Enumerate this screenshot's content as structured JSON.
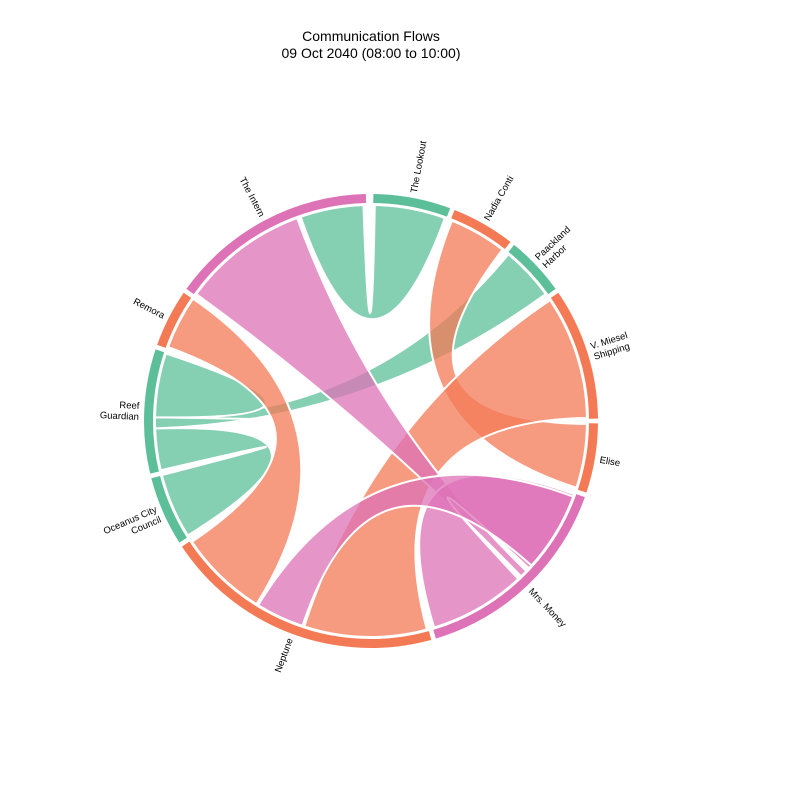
{
  "chart_data": {
    "type": "chord",
    "title": "Communication Flows",
    "subtitle": "09 Oct 2040 (08:00 to 10:00)",
    "nodes": [
      {
        "name": "The Lookout",
        "label_lines": [
          "The Lookout"
        ],
        "group": "green",
        "start_deg": 0.0,
        "end_deg": 21.0
      },
      {
        "name": "Nadia Conti",
        "label_lines": [
          "Nadia Conti"
        ],
        "group": "orange",
        "start_deg": 21.0,
        "end_deg": 38.5
      },
      {
        "name": "Paackland Harbor",
        "label_lines": [
          "Paackland",
          "Harbor"
        ],
        "group": "green",
        "start_deg": 38.5,
        "end_deg": 55.0
      },
      {
        "name": "V. Miesel Shipping",
        "label_lines": [
          "V. Miesel",
          "Shipping"
        ],
        "group": "orange",
        "start_deg": 55.0,
        "end_deg": 90.0
      },
      {
        "name": "Elise",
        "label_lines": [
          "Elise"
        ],
        "group": "orange",
        "start_deg": 90.0,
        "end_deg": 109.0
      },
      {
        "name": "Mrs. Money",
        "label_lines": [
          "Mrs. Money"
        ],
        "group": "pink",
        "start_deg": 109.0,
        "end_deg": 164.0
      },
      {
        "name": "Neptune",
        "label_lines": [
          "Neptune"
        ],
        "group": "orange",
        "start_deg": 164.0,
        "end_deg": 237.0
      },
      {
        "name": "Oceanus City Council",
        "label_lines": [
          "Oceanus City",
          "Council"
        ],
        "group": "green",
        "start_deg": 237.0,
        "end_deg": 256.0
      },
      {
        "name": "Reef Guardian",
        "label_lines": [
          "Reef",
          "Guardian"
        ],
        "group": "green",
        "start_deg": 256.0,
        "end_deg": 289.0
      },
      {
        "name": "Remora",
        "label_lines": [
          "Remora"
        ],
        "group": "orange",
        "start_deg": 289.0,
        "end_deg": 305.0
      },
      {
        "name": "The Intern",
        "label_lines": [
          "The Intern"
        ],
        "group": "pink",
        "start_deg": 305.0,
        "end_deg": 359.3
      }
    ],
    "flows": [
      {
        "source": "The Lookout",
        "target": "The Intern",
        "group": "green",
        "s": [
          1.0,
          20.0
        ],
        "t": [
          341.0,
          358.0
        ]
      },
      {
        "source": "Paackland Harbor",
        "target": "Reef Guardian",
        "group": "green",
        "s": [
          39.5,
          54.0
        ],
        "t": [
          268.0,
          271.0
        ]
      },
      {
        "source": "Reef Guardian",
        "target": "Oceanus City Council",
        "group": "green",
        "s": [
          256.8,
          268.0
        ],
        "t": [
          238.0,
          255.5
        ]
      },
      {
        "source": "Reef Guardian",
        "target": "Reef Guardian",
        "group": "green",
        "s": [
          271.0,
          288.2
        ],
        "t": [
          271.0,
          271.0
        ]
      },
      {
        "source": "Nadia Conti",
        "target": "Elise",
        "group": "orange",
        "s": [
          22.0,
          37.5
        ],
        "t": [
          90.8,
          108.0
        ]
      },
      {
        "source": "V. Miesel Shipping",
        "target": "Neptune",
        "group": "orange",
        "s": [
          56.0,
          89.2
        ],
        "t": [
          165.0,
          198.0
        ]
      },
      {
        "source": "Neptune",
        "target": "Remora",
        "group": "orange",
        "s": [
          212.0,
          236.0
        ],
        "t": [
          290.0,
          304.5
        ]
      },
      {
        "source": "The Intern",
        "target": "Mrs. Money",
        "group": "pink",
        "s": [
          306.0,
          340.0
        ],
        "t": [
          134.0,
          136.0
        ]
      },
      {
        "source": "Mrs. Money",
        "target": "Mrs. Money",
        "group": "pink",
        "s": [
          109.8,
          133.0
        ],
        "t": [
          137.0,
          163.0
        ]
      },
      {
        "source": "Mrs. Money",
        "target": "Neptune",
        "group": "pink",
        "s": [
          110.5,
          132.0
        ],
        "t": [
          198.5,
          211.5
        ]
      }
    ],
    "colors": {
      "green": "#5cbf99",
      "orange": "#f47a55",
      "pink": "#dd72b7"
    }
  }
}
